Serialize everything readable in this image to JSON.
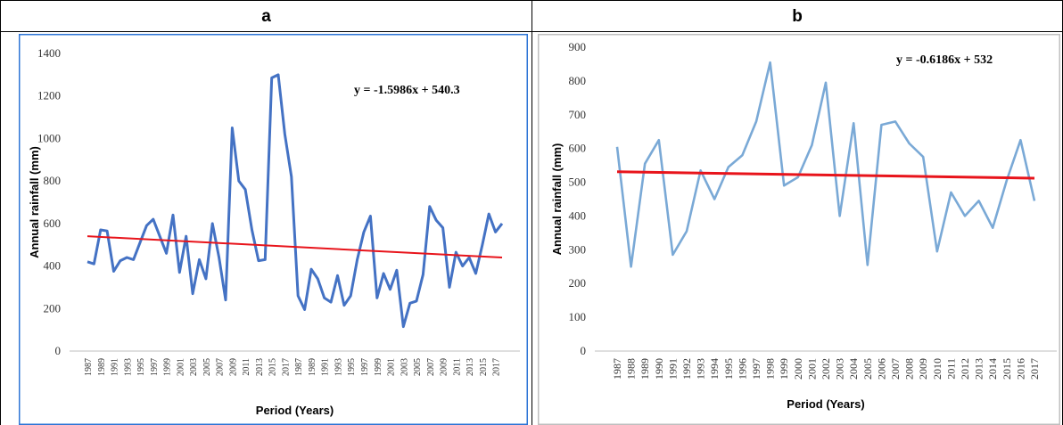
{
  "panels": [
    {
      "label": "a"
    },
    {
      "label": "b"
    }
  ],
  "chart_data": [
    {
      "type": "line",
      "xlabel": "Period (Years)",
      "ylabel": "Annual rainfall (mm)",
      "ylim": [
        0,
        1400
      ],
      "yticks": [
        0,
        200,
        400,
        600,
        800,
        1000,
        1200,
        1400
      ],
      "xtick_labels": [
        "1987",
        "1989",
        "1991",
        "1993",
        "1995",
        "1997",
        "1999",
        "2001",
        "2003",
        "2005",
        "2007",
        "2009",
        "2011",
        "2013",
        "2015",
        "2017",
        "1987",
        "1989",
        "1991",
        "1993",
        "1995",
        "1997",
        "1999",
        "2001",
        "2003",
        "2005",
        "2007",
        "2009",
        "2011",
        "2013",
        "2015",
        "2017"
      ],
      "values": [
        420,
        410,
        570,
        565,
        375,
        425,
        440,
        430,
        510,
        590,
        620,
        540,
        460,
        640,
        370,
        540,
        270,
        430,
        340,
        600,
        440,
        240,
        1050,
        800,
        760,
        570,
        425,
        430,
        1285,
        1300,
        1020,
        820,
        260,
        195,
        385,
        340,
        250,
        230,
        355,
        215,
        260,
        430,
        560,
        635,
        250,
        365,
        290,
        380,
        115,
        225,
        235,
        360,
        680,
        615,
        580,
        300,
        465,
        400,
        440,
        365,
        500,
        645,
        560,
        600
      ],
      "trend": {
        "start": 540,
        "end": 440,
        "color": "#e8141b"
      },
      "equation": "y = -1.5986x + 540.3",
      "line_color": "#4472c4",
      "grid": false
    },
    {
      "type": "line",
      "xlabel": "Period (Years)",
      "ylabel": "Annual rainfall (mm)",
      "ylim": [
        0,
        900
      ],
      "yticks": [
        0,
        100,
        200,
        300,
        400,
        500,
        600,
        700,
        800,
        900
      ],
      "categories": [
        "1987",
        "1988",
        "1989",
        "1990",
        "1991",
        "1992",
        "1993",
        "1994",
        "1995",
        "1996",
        "1997",
        "1998",
        "1999",
        "2000",
        "2001",
        "2002",
        "2003",
        "2004",
        "2005",
        "2006",
        "2007",
        "2008",
        "2009",
        "2010",
        "2011",
        "2012",
        "2013",
        "2014",
        "2015",
        "2016",
        "2017"
      ],
      "values": [
        605,
        250,
        555,
        625,
        285,
        355,
        535,
        450,
        545,
        580,
        680,
        855,
        490,
        515,
        610,
        795,
        400,
        675,
        255,
        670,
        680,
        615,
        575,
        295,
        470,
        400,
        445,
        365,
        505,
        625,
        445
      ],
      "trend": {
        "start": 531,
        "end": 512,
        "color": "#e8141b"
      },
      "equation": "y = -0.6186x + 532",
      "line_color": "#7aa9d6",
      "grid": false
    }
  ]
}
